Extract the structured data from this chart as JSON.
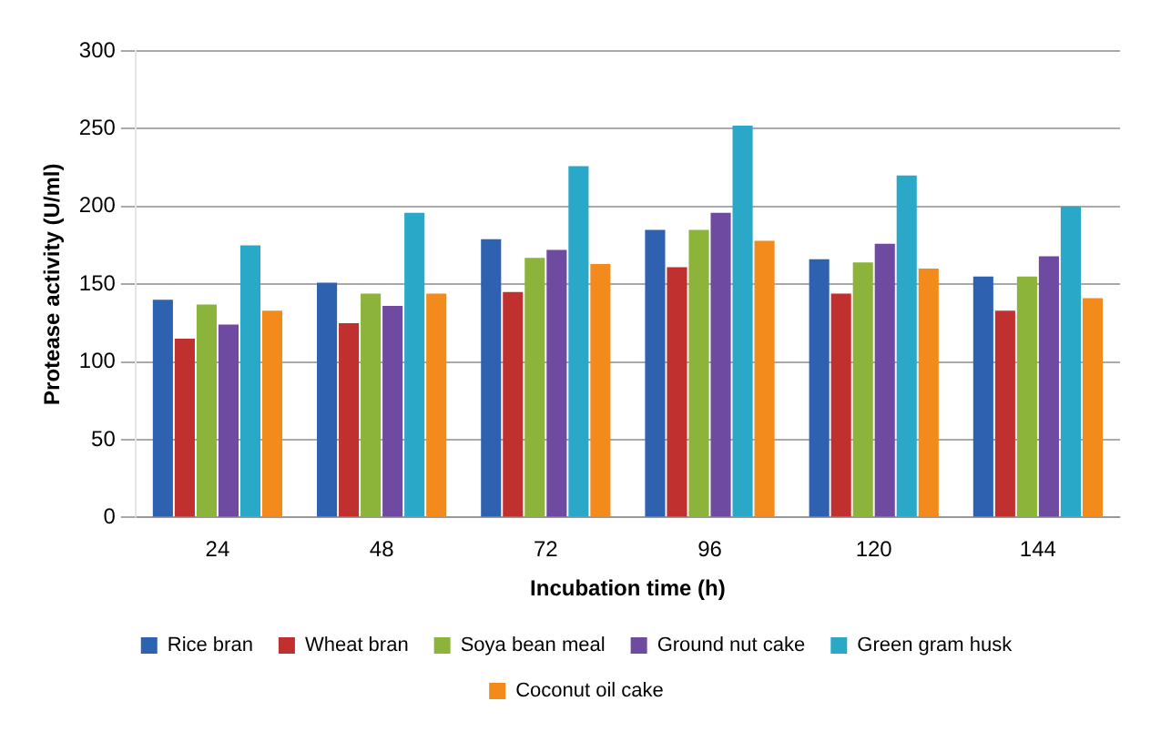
{
  "chart_data": {
    "type": "bar",
    "xlabel": "Incubation time (h)",
    "ylabel": "Protease activity (U/ml)",
    "categories": [
      "24",
      "48",
      "72",
      "96",
      "120",
      "144"
    ],
    "series": [
      {
        "name": "Rice bran",
        "color": "#2e62b0",
        "values": [
          140,
          151,
          179,
          185,
          166,
          155
        ]
      },
      {
        "name": "Wheat bran",
        "color": "#c0302f",
        "values": [
          115,
          125,
          145,
          161,
          144,
          133
        ]
      },
      {
        "name": "Soya bean meal",
        "color": "#8cb33a",
        "values": [
          137,
          144,
          167,
          185,
          164,
          155
        ]
      },
      {
        "name": "Ground nut cake",
        "color": "#6e4aa0",
        "values": [
          124,
          136,
          172,
          196,
          176,
          168
        ]
      },
      {
        "name": "Green gram husk",
        "color": "#2aa8c8",
        "values": [
          175,
          196,
          226,
          252,
          220,
          200
        ]
      },
      {
        "name": "Coconut oil cake",
        "color": "#f28a1c",
        "values": [
          133,
          144,
          163,
          178,
          160,
          141
        ]
      }
    ],
    "ylim": [
      0,
      300
    ],
    "yticks": [
      0,
      50,
      100,
      150,
      200,
      250,
      300
    ],
    "grid": "y",
    "legend": "bottom"
  }
}
